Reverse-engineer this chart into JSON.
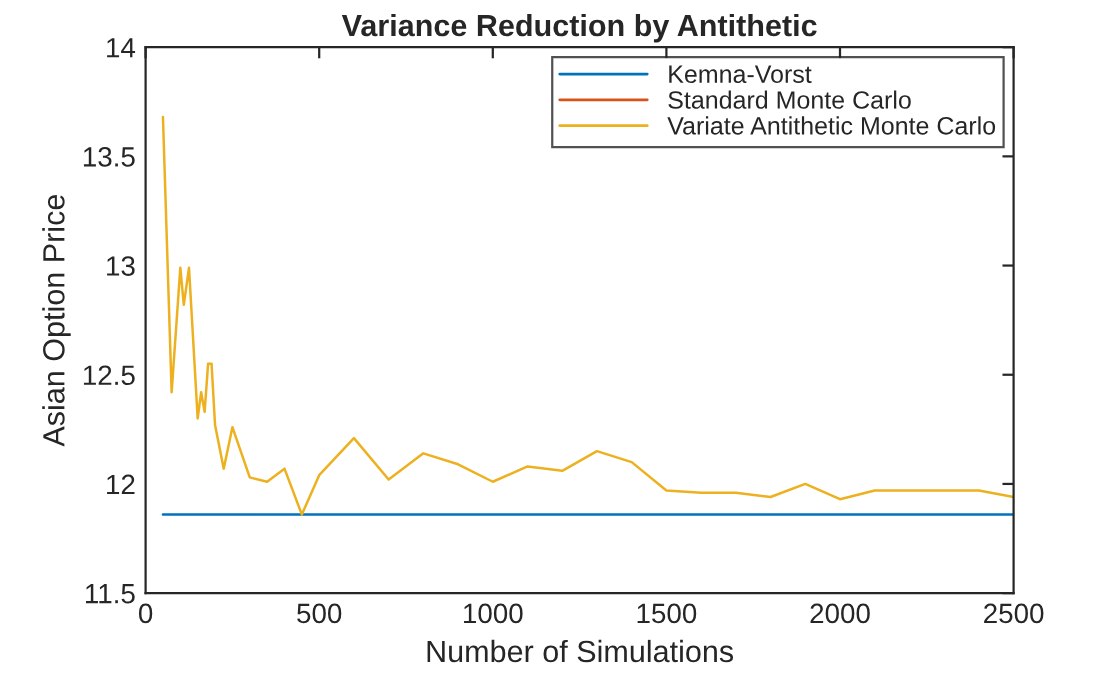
{
  "chart_data": {
    "type": "line",
    "title": "Variance Reduction by Antithetic",
    "xlabel": "Number of Simulations",
    "ylabel": "Asian Option Price",
    "xlim": [
      0,
      2500
    ],
    "xticks": [
      0,
      500,
      1000,
      1500,
      2000,
      2500
    ],
    "ylim": [
      11.5,
      14
    ],
    "yticks": [
      11.5,
      12,
      12.5,
      13,
      13.5,
      14
    ],
    "legend": "top right",
    "grid": false,
    "series": [
      {
        "name": "Kemna-Vorst",
        "color": "#0072bd",
        "x": [
          50,
          2500
        ],
        "values": [
          11.86,
          11.86
        ]
      },
      {
        "name": "Standard Monte Carlo",
        "color": "#d95319"
      },
      {
        "name": "Variate Antithetic Monte Carlo",
        "color": "#edb120",
        "x": [
          50,
          75,
          100,
          110,
          125,
          150,
          160,
          170,
          180,
          190,
          200,
          225,
          250,
          300,
          350,
          400,
          450,
          500,
          600,
          700,
          800,
          900,
          1000,
          1100,
          1200,
          1300,
          1400,
          1500,
          1600,
          1700,
          1800,
          1900,
          2000,
          2100,
          2200,
          2300,
          2400,
          2500
        ],
        "values": [
          13.68,
          12.42,
          12.99,
          12.82,
          12.99,
          12.3,
          12.42,
          12.33,
          12.55,
          12.55,
          12.27,
          12.07,
          12.26,
          12.03,
          12.01,
          12.07,
          11.86,
          12.04,
          12.21,
          12.02,
          12.14,
          12.09,
          12.01,
          12.08,
          12.06,
          12.15,
          12.1,
          11.97,
          11.96,
          11.96,
          11.94,
          12.0,
          11.93,
          11.97,
          11.97,
          11.97,
          11.97,
          11.94
        ]
      }
    ]
  }
}
